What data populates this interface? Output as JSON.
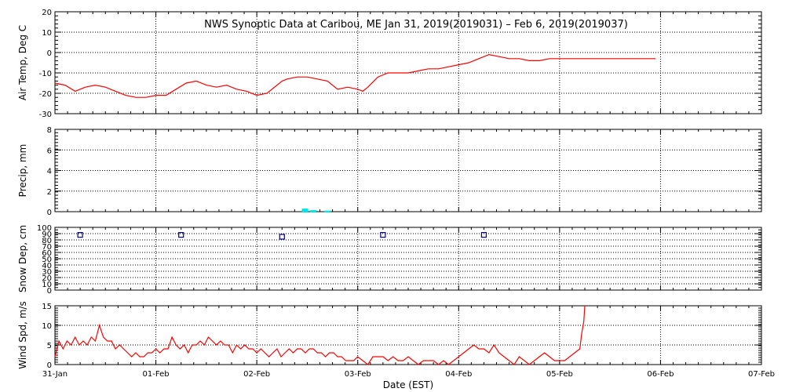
{
  "title": "NWS Synoptic Data at Caribou, ME   Jan 31, 2019(2019031) – Feb  6, 2019(2019037)",
  "xlabel": "Date (EST)",
  "x_ticks": [
    "31-Jan",
    "01-Feb",
    "02-Feb",
    "03-Feb",
    "04-Feb",
    "05-Feb",
    "06-Feb",
    "07-Feb"
  ],
  "colors": {
    "temp": "#ff0000",
    "precip": "#00e5e5",
    "snow": "#000080",
    "wind": "#ff0000",
    "grid": "#000000"
  },
  "chart_data": [
    {
      "id": "air-temp",
      "type": "line",
      "ylabel": "Air Temp, Deg C",
      "ylim": [
        -30,
        20
      ],
      "yticks": [
        -30,
        -20,
        -10,
        0,
        10,
        20
      ],
      "xlim": [
        0,
        7
      ],
      "grid": true,
      "x": [
        0,
        0.1,
        0.2,
        0.3,
        0.4,
        0.5,
        0.6,
        0.7,
        0.8,
        0.9,
        1.0,
        1.1,
        1.2,
        1.3,
        1.4,
        1.5,
        1.6,
        1.7,
        1.8,
        1.9,
        2.0,
        2.1,
        2.2,
        2.25,
        2.3,
        2.4,
        2.5,
        2.6,
        2.7,
        2.8,
        2.9,
        3.0,
        3.05,
        3.1,
        3.2,
        3.3,
        3.4,
        3.5,
        3.6,
        3.7,
        3.8,
        3.9,
        4.0,
        4.1,
        4.2,
        4.3,
        4.4,
        4.5,
        4.55,
        4.6,
        4.7,
        4.8,
        4.9,
        5.0,
        5.1,
        5.2,
        5.5,
        5.9,
        5.95
      ],
      "y": [
        -15,
        -16,
        -19,
        -17,
        -16,
        -17,
        -19,
        -21,
        -22,
        -22,
        -21,
        -21,
        -18,
        -15,
        -14,
        -16,
        -17,
        -16,
        -18,
        -19,
        -21,
        -20,
        -16,
        -14,
        -13,
        -12,
        -12,
        -13,
        -14,
        -18,
        -17,
        -18,
        -19,
        -17,
        -12,
        -10,
        -10,
        -10,
        -9,
        -8,
        -8,
        -7,
        -6,
        -5,
        -3,
        -1,
        -2,
        -3,
        -3,
        -3,
        -4,
        -4,
        -3,
        -3,
        -3,
        -3,
        -3,
        -3,
        -3
      ]
    },
    {
      "id": "precip",
      "type": "bar",
      "ylabel": "Precip, mm",
      "ylim": [
        0,
        8
      ],
      "yticks": [
        0,
        2,
        4,
        6,
        8
      ],
      "xlim": [
        0,
        7
      ],
      "grid": true,
      "x": [
        2.47,
        2.55,
        2.69
      ],
      "values": [
        0.3,
        0.15,
        0.1
      ]
    },
    {
      "id": "snow-depth",
      "type": "scatter",
      "ylabel": "Snow Dep, cm",
      "ylim": [
        0,
        100
      ],
      "yticks": [
        0,
        10,
        20,
        30,
        40,
        50,
        60,
        70,
        80,
        90,
        100
      ],
      "xlim": [
        0,
        7
      ],
      "grid": true,
      "x": [
        0.25,
        1.25,
        2.25,
        3.25,
        4.25
      ],
      "y": [
        88,
        88,
        85,
        88,
        88
      ]
    },
    {
      "id": "wind-speed",
      "type": "line",
      "ylabel": "Wind Spd, m/s",
      "ylim": [
        0,
        15
      ],
      "yticks": [
        0,
        5,
        10,
        15
      ],
      "xlim": [
        0,
        7
      ],
      "grid": true,
      "x": [
        0,
        0.04,
        0.08,
        0.12,
        0.16,
        0.2,
        0.24,
        0.28,
        0.32,
        0.36,
        0.4,
        0.44,
        0.48,
        0.52,
        0.56,
        0.6,
        0.64,
        0.68,
        0.72,
        0.76,
        0.8,
        0.84,
        0.88,
        0.92,
        0.96,
        1.0,
        1.04,
        1.08,
        1.12,
        1.16,
        1.2,
        1.24,
        1.28,
        1.32,
        1.36,
        1.4,
        1.44,
        1.48,
        1.52,
        1.56,
        1.6,
        1.64,
        1.68,
        1.72,
        1.76,
        1.8,
        1.84,
        1.88,
        1.92,
        1.96,
        2.0,
        2.04,
        2.08,
        2.12,
        2.16,
        2.2,
        2.24,
        2.28,
        2.32,
        2.36,
        2.4,
        2.44,
        2.48,
        2.52,
        2.56,
        2.6,
        2.64,
        2.68,
        2.72,
        2.76,
        2.8,
        2.84,
        2.88,
        2.92,
        2.96,
        3.0,
        3.05,
        3.1,
        3.15,
        3.2,
        3.25,
        3.3,
        3.35,
        3.4,
        3.45,
        3.5,
        3.55,
        3.6,
        3.65,
        3.7,
        3.75,
        3.8,
        3.85,
        3.9,
        3.95,
        4.0,
        4.05,
        4.1,
        4.15,
        4.2,
        4.25,
        4.3,
        4.35,
        4.4,
        4.45,
        4.5,
        4.55,
        4.6,
        4.65,
        4.7,
        4.75,
        4.8,
        4.85,
        4.9,
        4.95,
        5.0,
        5.05,
        5.1,
        5.15,
        5.2,
        5.22,
        5.24,
        5.25
      ],
      "y": [
        2,
        6,
        4,
        6,
        5,
        7,
        5,
        6,
        5,
        7,
        6,
        10,
        7,
        6,
        6,
        4,
        5,
        4,
        3,
        2,
        3,
        2,
        2,
        3,
        3,
        4,
        3,
        4,
        4,
        7,
        5,
        4,
        5,
        3,
        5,
        5,
        6,
        5,
        7,
        6,
        5,
        6,
        5,
        5,
        3,
        5,
        4,
        5,
        4,
        4,
        3,
        4,
        3,
        2,
        3,
        4,
        2,
        3,
        4,
        3,
        4,
        4,
        3,
        4,
        4,
        3,
        3,
        2,
        3,
        3,
        2,
        2,
        1,
        1,
        1,
        2,
        1,
        0,
        2,
        2,
        2,
        1,
        2,
        1,
        1,
        2,
        1,
        0,
        1,
        1,
        1,
        0,
        1,
        0,
        1,
        2,
        3,
        4,
        5,
        4,
        4,
        3,
        5,
        3,
        2,
        1,
        0,
        2,
        1,
        0,
        1,
        2,
        3,
        2,
        1,
        1,
        1,
        2,
        3,
        4,
        8,
        11,
        15
      ]
    }
  ]
}
